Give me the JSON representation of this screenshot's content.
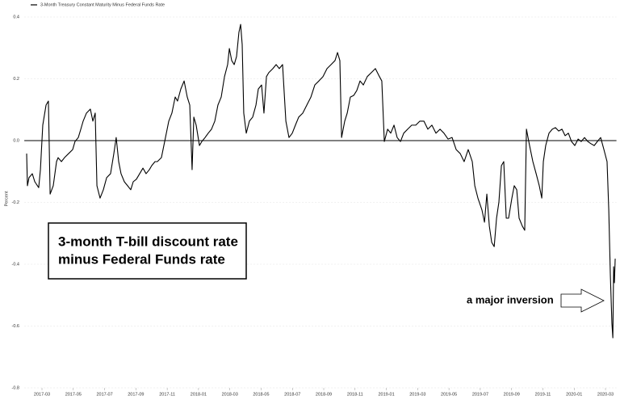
{
  "chart_data": {
    "type": "line",
    "legend_label": "3-Month Treasury Constant Maturity Minus Federal Funds Rate",
    "ylabel": "Percent",
    "annotation_box": [
      "3-month T-bill discount rate",
      "minus Federal Funds rate"
    ],
    "annotation_arrow": "a major inversion",
    "grid": true,
    "reference_line": 0,
    "xlim": [
      0.87,
      38.7
    ],
    "ylim": [
      -0.8,
      0.42
    ],
    "xticks": [
      {
        "value": 2,
        "label": "2017-03"
      },
      {
        "value": 4,
        "label": "2017-05"
      },
      {
        "value": 6,
        "label": "2017-07"
      },
      {
        "value": 8,
        "label": "2017-09"
      },
      {
        "value": 10,
        "label": "2017-11"
      },
      {
        "value": 12,
        "label": "2018-01"
      },
      {
        "value": 14,
        "label": "2018-03"
      },
      {
        "value": 16,
        "label": "2018-05"
      },
      {
        "value": 18,
        "label": "2018-07"
      },
      {
        "value": 20,
        "label": "2018-09"
      },
      {
        "value": 22,
        "label": "2018-11"
      },
      {
        "value": 24,
        "label": "2019-01"
      },
      {
        "value": 26,
        "label": "2019-03"
      },
      {
        "value": 28,
        "label": "2019-05"
      },
      {
        "value": 30,
        "label": "2019-07"
      },
      {
        "value": 32,
        "label": "2019-09"
      },
      {
        "value": 34,
        "label": "2019-11"
      },
      {
        "value": 36,
        "label": "2020-01"
      },
      {
        "value": 38,
        "label": "2020-03"
      }
    ],
    "yticks": [
      -0.8,
      -0.6,
      -0.4,
      -0.2,
      {
        "value": 0,
        "label": "0.0"
      },
      0.2,
      0.4
    ],
    "series": [
      {
        "name": "3-Month Treasury Constant Maturity Minus Federal Funds Rate",
        "color": "#000000",
        "x": [
          1.02,
          1.07,
          1.17,
          1.38,
          1.54,
          1.79,
          1.9,
          2.05,
          2.26,
          2.41,
          2.52,
          2.72,
          2.93,
          3.03,
          3.24,
          3.44,
          3.7,
          3.96,
          4.11,
          4.32,
          4.48,
          4.63,
          4.84,
          5.09,
          5.25,
          5.4,
          5.51,
          5.71,
          5.92,
          6.13,
          6.38,
          6.59,
          6.74,
          6.9,
          7.05,
          7.26,
          7.47,
          7.67,
          7.83,
          8.03,
          8.24,
          8.45,
          8.65,
          8.86,
          9.01,
          9.22,
          9.37,
          9.63,
          9.89,
          10.1,
          10.3,
          10.51,
          10.66,
          10.87,
          11.08,
          11.28,
          11.44,
          11.59,
          11.7,
          11.85,
          12.06,
          12.21,
          12.42,
          12.62,
          12.83,
          13.04,
          13.24,
          13.45,
          13.66,
          13.86,
          13.97,
          14.12,
          14.28,
          14.43,
          14.58,
          14.69,
          14.79,
          14.89,
          15.05,
          15.25,
          15.46,
          15.67,
          15.82,
          16.03,
          16.18,
          16.34,
          16.49,
          16.75,
          16.96,
          17.16,
          17.37,
          17.58,
          17.78,
          17.99,
          18.19,
          18.4,
          18.66,
          18.92,
          19.18,
          19.43,
          19.69,
          19.95,
          20.21,
          20.47,
          20.72,
          20.88,
          21.03,
          21.14,
          21.34,
          21.5,
          21.7,
          21.91,
          22.11,
          22.32,
          22.53,
          22.78,
          23.04,
          23.3,
          23.56,
          23.71,
          23.87,
          24.08,
          24.28,
          24.49,
          24.69,
          24.9,
          25.11,
          25.36,
          25.62,
          25.88,
          26.14,
          26.4,
          26.65,
          26.91,
          27.17,
          27.43,
          27.68,
          27.94,
          28.2,
          28.46,
          28.72,
          28.97,
          29.23,
          29.49,
          29.65,
          29.85,
          30.11,
          30.27,
          30.42,
          30.58,
          30.73,
          30.89,
          31.04,
          31.19,
          31.35,
          31.5,
          31.66,
          31.81,
          32.02,
          32.17,
          32.33,
          32.48,
          32.69,
          32.84,
          32.95,
          33.15,
          33.36,
          33.57,
          33.77,
          33.93,
          34.03,
          34.18,
          34.39,
          34.6,
          34.8,
          35.01,
          35.22,
          35.42,
          35.63,
          35.83,
          36.04,
          36.25,
          36.45,
          36.66,
          36.87,
          37.07,
          37.28,
          37.48,
          37.69,
          37.9,
          38.1,
          38.21,
          38.31,
          38.41,
          38.47,
          38.52,
          38.57,
          38.62
        ],
        "values": [
          -0.042,
          -0.146,
          -0.12,
          -0.107,
          -0.133,
          -0.152,
          -0.094,
          0.05,
          0.115,
          0.128,
          -0.173,
          -0.146,
          -0.068,
          -0.055,
          -0.068,
          -0.055,
          -0.042,
          -0.029,
          -0.003,
          0.01,
          0.037,
          0.063,
          0.089,
          0.102,
          0.063,
          0.089,
          -0.146,
          -0.186,
          -0.159,
          -0.12,
          -0.107,
          -0.042,
          0.01,
          -0.068,
          -0.107,
          -0.133,
          -0.146,
          -0.159,
          -0.133,
          -0.125,
          -0.107,
          -0.089,
          -0.107,
          -0.094,
          -0.081,
          -0.068,
          -0.068,
          -0.055,
          0.01,
          0.063,
          0.089,
          0.141,
          0.128,
          0.167,
          0.193,
          0.141,
          0.115,
          -0.094,
          0.076,
          0.05,
          -0.016,
          -0.003,
          0.01,
          0.024,
          0.037,
          0.063,
          0.115,
          0.141,
          0.207,
          0.246,
          0.298,
          0.259,
          0.246,
          0.272,
          0.35,
          0.376,
          0.311,
          0.089,
          0.024,
          0.063,
          0.076,
          0.115,
          0.167,
          0.18,
          0.089,
          0.207,
          0.22,
          0.233,
          0.246,
          0.233,
          0.246,
          0.063,
          0.01,
          0.024,
          0.05,
          0.076,
          0.089,
          0.115,
          0.141,
          0.18,
          0.193,
          0.207,
          0.233,
          0.246,
          0.259,
          0.285,
          0.259,
          0.01,
          0.063,
          0.089,
          0.141,
          0.146,
          0.162,
          0.193,
          0.18,
          0.207,
          0.22,
          0.233,
          0.207,
          0.193,
          -0.003,
          0.037,
          0.024,
          0.05,
          0.01,
          -0.003,
          0.024,
          0.037,
          0.05,
          0.05,
          0.063,
          0.063,
          0.037,
          0.05,
          0.024,
          0.037,
          0.024,
          0.005,
          0.01,
          -0.029,
          -0.042,
          -0.068,
          -0.029,
          -0.068,
          -0.146,
          -0.186,
          -0.225,
          -0.264,
          -0.173,
          -0.277,
          -0.329,
          -0.343,
          -0.251,
          -0.199,
          -0.081,
          -0.068,
          -0.251,
          -0.251,
          -0.186,
          -0.146,
          -0.159,
          -0.251,
          -0.277,
          -0.29,
          0.037,
          -0.016,
          -0.068,
          -0.107,
          -0.146,
          -0.186,
          -0.068,
          -0.016,
          0.024,
          0.037,
          0.042,
          0.031,
          0.037,
          0.016,
          0.024,
          -0.003,
          -0.016,
          0.005,
          -0.003,
          0.01,
          -0.003,
          -0.01,
          -0.016,
          -0.003,
          0.01,
          -0.029,
          -0.068,
          -0.225,
          -0.434,
          -0.591,
          -0.638,
          -0.408,
          -0.46,
          -0.382
        ]
      }
    ]
  }
}
